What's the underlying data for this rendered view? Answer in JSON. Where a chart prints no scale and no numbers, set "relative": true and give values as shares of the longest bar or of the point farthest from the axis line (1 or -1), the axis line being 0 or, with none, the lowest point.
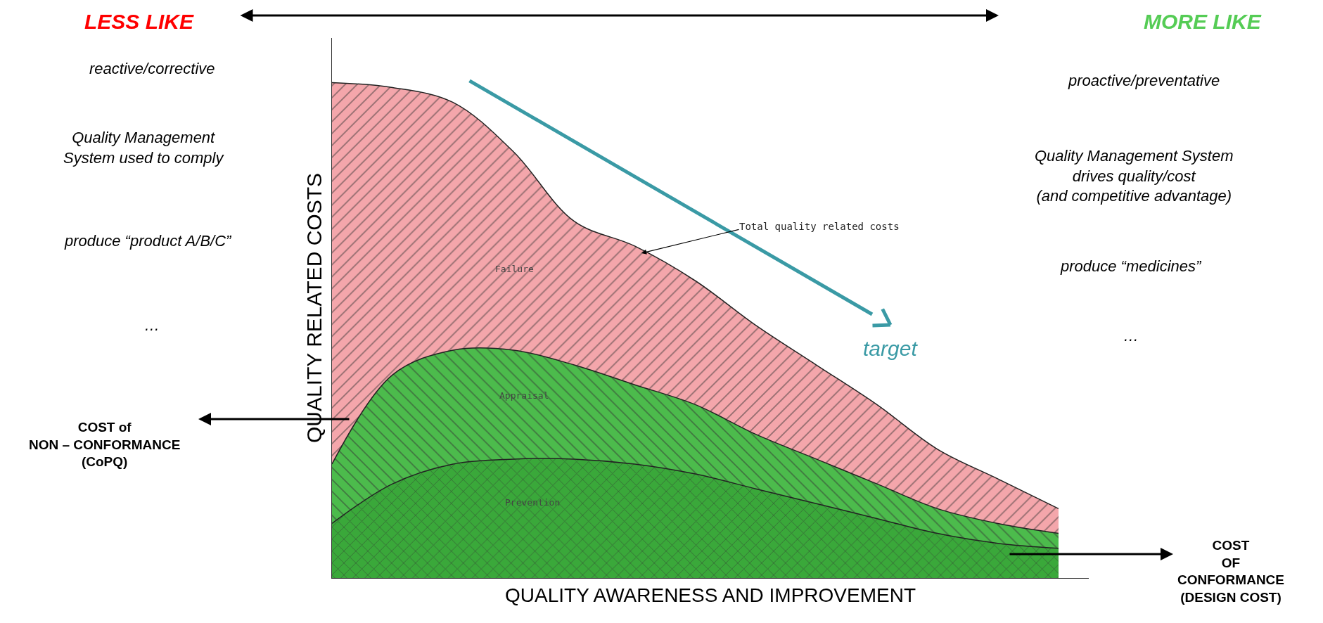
{
  "chart_data": {
    "type": "area",
    "relative": true,
    "stacked": true,
    "xlabel": "QUALITY AWARENESS AND IMPROVEMENT",
    "ylabel": "QUALITY RELATED COSTS",
    "categories": [
      null,
      null,
      null,
      null,
      null,
      null,
      null,
      null,
      null,
      null,
      null,
      null,
      null
    ],
    "series": [
      {
        "name": "Prevention",
        "color": "#3aa83a",
        "values": [
          0.11,
          0.19,
          0.23,
          0.24,
          0.24,
          0.23,
          0.21,
          0.18,
          0.15,
          0.12,
          0.09,
          0.07,
          0.06
        ]
      },
      {
        "name": "Appraisal",
        "color": "#4cbb4c",
        "values": [
          0.12,
          0.22,
          0.23,
          0.22,
          0.19,
          0.16,
          0.14,
          0.11,
          0.09,
          0.07,
          0.05,
          0.04,
          0.03
        ]
      },
      {
        "name": "Failure",
        "color": "#f4a6ab",
        "values": [
          0.77,
          0.58,
          0.5,
          0.4,
          0.29,
          0.28,
          0.25,
          0.22,
          0.19,
          0.16,
          0.12,
          0.09,
          0.05
        ]
      }
    ],
    "annotations": [
      "LESS LIKE",
      "MORE LIKE",
      "reactive/corrective",
      "Quality Management\nSystem used to comply",
      "produce “product A/B/C”",
      "…",
      "proactive/preventative",
      "Quality Management System\ndrives quality/cost\n(and competitive advantage)",
      "produce “medicines”",
      "…",
      "Total quality related costs",
      "target",
      "COST of\nNON – CONFORMANCE\n(CoPQ)",
      "COST\nOF\nCONFORMANCE\n(DESIGN COST)"
    ]
  }
}
